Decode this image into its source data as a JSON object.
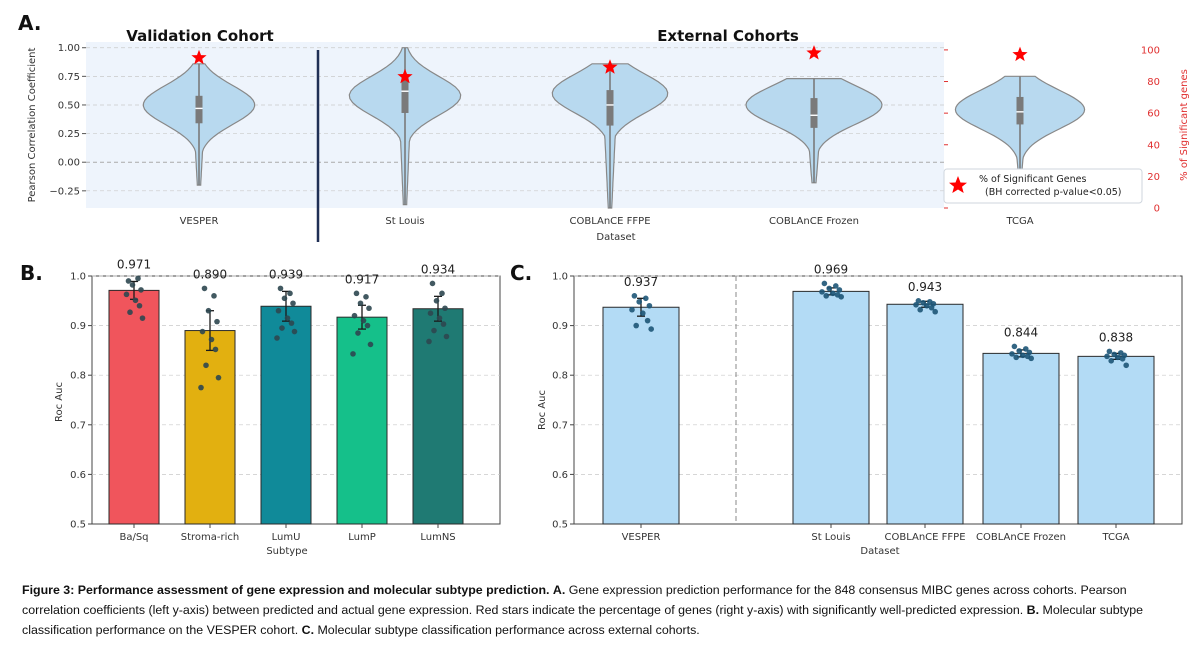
{
  "panels": {
    "a": {
      "letter": "A.",
      "group_left_title": "Validation Cohort",
      "group_right_title": "External Cohorts",
      "ylabel_left": "Pearson Correlation Coefficient",
      "ylabel_right": "% of Significant genes",
      "xlabel": "Dataset",
      "legend_line1": "% of Significant Genes",
      "legend_line2": "(BH corrected p-value<0.05)"
    },
    "b": {
      "letter": "B.",
      "xlabel": "Subtype",
      "ylabel": "Roc Auc"
    },
    "c": {
      "letter": "C.",
      "xlabel": "Dataset",
      "ylabel": "Roc Auc"
    }
  },
  "chart_data": [
    {
      "panel": "A",
      "type": "violin",
      "categories": [
        "VESPER",
        "St Louis",
        "COBLAnCE FFPE",
        "COBLAnCE Frozen",
        "TCGA"
      ],
      "ylim": [
        -0.4,
        1.05
      ],
      "yticks": [
        "1.00",
        "0.75",
        "0.50",
        "0.25",
        "0.00",
        "−0.25"
      ],
      "ylim_right": [
        0,
        105
      ],
      "yticks_right": [
        "100",
        "80",
        "60",
        "40",
        "20",
        "0"
      ],
      "grid": true,
      "legend": "bottom-right",
      "colors": {
        "violin": "#b8d9ef",
        "violin_edge": "#888888",
        "star": "#ff0000",
        "right_axis": "#e03030",
        "divider": "#1f2f55"
      },
      "violins": [
        {
          "min": -0.2,
          "q1": 0.34,
          "median": 0.47,
          "q3": 0.58,
          "max": 0.86,
          "mode": 0.5,
          "width": 0.82
        },
        {
          "min": -0.37,
          "q1": 0.43,
          "median": 0.62,
          "q3": 0.75,
          "max": 1.0,
          "mode": 0.58,
          "width": 0.82
        },
        {
          "min": -0.4,
          "q1": 0.32,
          "median": 0.5,
          "q3": 0.63,
          "max": 0.86,
          "mode": 0.6,
          "width": 0.85
        },
        {
          "min": -0.18,
          "q1": 0.3,
          "median": 0.41,
          "q3": 0.56,
          "max": 0.73,
          "mode": 0.5,
          "width": 1.0
        },
        {
          "min": -0.08,
          "q1": 0.33,
          "median": 0.44,
          "q3": 0.57,
          "max": 0.75,
          "mode": 0.46,
          "width": 0.95
        }
      ],
      "pct_significant": [
        95,
        83,
        89,
        98,
        97
      ]
    },
    {
      "panel": "B",
      "type": "bar",
      "categories": [
        "Ba/Sq",
        "Stroma-rich",
        "LumU",
        "LumP",
        "LumNS"
      ],
      "values": [
        0.971,
        0.89,
        0.939,
        0.917,
        0.934
      ],
      "value_labels": [
        "0.971",
        "0.890",
        "0.939",
        "0.917",
        "0.934"
      ],
      "errors": [
        0.018,
        0.04,
        0.03,
        0.024,
        0.025
      ],
      "points": [
        [
          0.99,
          0.995,
          0.982,
          0.972,
          0.963,
          0.951,
          0.94,
          0.927,
          0.915
        ],
        [
          0.975,
          0.96,
          0.93,
          0.908,
          0.888,
          0.872,
          0.852,
          0.82,
          0.795,
          0.775
        ],
        [
          0.975,
          0.965,
          0.955,
          0.945,
          0.93,
          0.915,
          0.905,
          0.895,
          0.888,
          0.875
        ],
        [
          0.965,
          0.958,
          0.945,
          0.935,
          0.92,
          0.91,
          0.9,
          0.885,
          0.862,
          0.843
        ],
        [
          0.985,
          0.965,
          0.95,
          0.935,
          0.925,
          0.915,
          0.903,
          0.89,
          0.878,
          0.868
        ]
      ],
      "ylim": [
        0.5,
        1.0
      ],
      "yticks": [
        "1.0",
        "0.9",
        "0.8",
        "0.7",
        "0.6",
        "0.5"
      ],
      "colors": [
        "#f0555c",
        "#e2b010",
        "#108a99",
        "#15c08a",
        "#1f7a73"
      ],
      "point_color": "#2e4750",
      "grid": true
    },
    {
      "panel": "C",
      "type": "bar",
      "categories": [
        "VESPER",
        "St Louis",
        "COBLAnCE FFPE",
        "COBLAnCE Frozen",
        "TCGA"
      ],
      "values": [
        0.937,
        0.969,
        0.943,
        0.844,
        0.838
      ],
      "value_labels": [
        "0.937",
        "0.969",
        "0.943",
        "0.844",
        "0.838"
      ],
      "errors": [
        0.018,
        0.007,
        0.006,
        0.007,
        0.006
      ],
      "points": [
        [
          0.96,
          0.955,
          0.948,
          0.94,
          0.932,
          0.925,
          0.91,
          0.9,
          0.893
        ],
        [
          0.985,
          0.98,
          0.975,
          0.972,
          0.968,
          0.965,
          0.962,
          0.96,
          0.958
        ],
        [
          0.95,
          0.948,
          0.946,
          0.944,
          0.942,
          0.94,
          0.936,
          0.932,
          0.928
        ],
        [
          0.858,
          0.853,
          0.849,
          0.846,
          0.843,
          0.84,
          0.838,
          0.836,
          0.834
        ],
        [
          0.848,
          0.845,
          0.842,
          0.84,
          0.838,
          0.836,
          0.833,
          0.829,
          0.82
        ]
      ],
      "ylim": [
        0.5,
        1.0
      ],
      "yticks": [
        "1.0",
        "0.9",
        "0.8",
        "0.7",
        "0.6",
        "0.5"
      ],
      "colors": [
        "#b3dbf5"
      ],
      "point_color": "#1d5577",
      "grid": true
    }
  ],
  "caption": {
    "title": "Figure 3: Performance assessment of gene expression and molecular subtype prediction.",
    "a_label": "A.",
    "a_text": "Gene expression prediction performance for the 848 consensus MIBC genes across cohorts. Pearson correlation coefficients (left y-axis) between predicted and actual gene expression. Red stars indicate the percentage of genes (right y-axis) with significantly well-predicted expression.",
    "b_label": "B.",
    "b_text": "Molecular subtype classification performance on the VESPER cohort.",
    "c_label": "C.",
    "c_text": "Molecular subtype classification performance across external cohorts."
  }
}
